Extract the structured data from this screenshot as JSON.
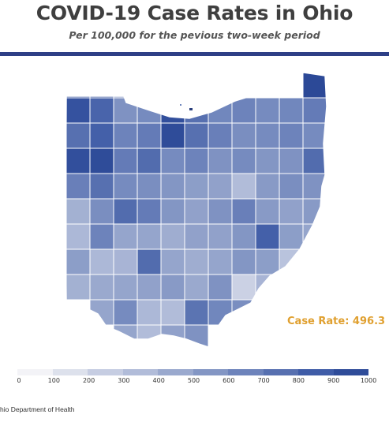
{
  "title": "COVID-19 Case Rates in Ohio",
  "subtitle": "Per 100,000 for the pevious two-week period",
  "highlight": {
    "text": "Case Rate: 496.3",
    "color": "#e0a030"
  },
  "source": "hio Department of Health",
  "legend": {
    "ticks": [
      "0",
      "100",
      "200",
      "300",
      "400",
      "500",
      "600",
      "700",
      "800",
      "900",
      "1000"
    ],
    "colors": [
      "#f3f3f7",
      "#dde1ec",
      "#c6cde2",
      "#b1bcd9",
      "#9aa9ce",
      "#8396c4",
      "#6d83bb",
      "#5770b0",
      "#3f5ca7",
      "#2f4c99",
      "#223f8e"
    ]
  },
  "accent": "#2e3f86",
  "chart_data": {
    "type": "heatmap",
    "title": "COVID-19 Case Rates in Ohio",
    "subtitle": "Per 100,000 for the pevious two-week period",
    "scale_range": [
      0,
      1000
    ],
    "annotation": "Case Rate: 496.3",
    "counties": [
      {
        "row": 0,
        "col": 0,
        "value": 880
      },
      {
        "row": 0,
        "col": 1,
        "value": 900
      },
      {
        "row": 0,
        "col": 2,
        "value": 520
      },
      {
        "row": 0,
        "col": 3,
        "value": 460
      },
      {
        "row": 0,
        "col": 4,
        "value": 510
      },
      {
        "row": 0,
        "col": 5,
        "value": 520
      },
      {
        "row": 0,
        "col": 10,
        "value": 920
      },
      {
        "row": 1,
        "col": 0,
        "value": 860
      },
      {
        "row": 1,
        "col": 1,
        "value": 760
      },
      {
        "row": 1,
        "col": 2,
        "value": 520
      },
      {
        "row": 1,
        "col": 3,
        "value": 560
      },
      {
        "row": 1,
        "col": 4,
        "value": 880
      },
      {
        "row": 1,
        "col": 5,
        "value": 700
      },
      {
        "row": 1,
        "col": 6,
        "value": 580
      },
      {
        "row": 1,
        "col": 7,
        "value": 600
      },
      {
        "row": 1,
        "col": 8,
        "value": 560
      },
      {
        "row": 1,
        "col": 9,
        "value": 580
      },
      {
        "row": 1,
        "col": 10,
        "value": 640
      },
      {
        "row": 2,
        "col": 0,
        "value": 700
      },
      {
        "row": 2,
        "col": 1,
        "value": 780
      },
      {
        "row": 2,
        "col": 2,
        "value": 600
      },
      {
        "row": 2,
        "col": 3,
        "value": 640
      },
      {
        "row": 2,
        "col": 4,
        "value": 900
      },
      {
        "row": 2,
        "col": 5,
        "value": 700
      },
      {
        "row": 2,
        "col": 6,
        "value": 620
      },
      {
        "row": 2,
        "col": 7,
        "value": 540
      },
      {
        "row": 2,
        "col": 8,
        "value": 560
      },
      {
        "row": 2,
        "col": 9,
        "value": 600
      },
      {
        "row": 2,
        "col": 10,
        "value": 560
      },
      {
        "row": 3,
        "col": 0,
        "value": 880
      },
      {
        "row": 3,
        "col": 1,
        "value": 900
      },
      {
        "row": 3,
        "col": 2,
        "value": 640
      },
      {
        "row": 3,
        "col": 3,
        "value": 720
      },
      {
        "row": 3,
        "col": 4,
        "value": 560
      },
      {
        "row": 3,
        "col": 5,
        "value": 600
      },
      {
        "row": 3,
        "col": 6,
        "value": 520
      },
      {
        "row": 3,
        "col": 7,
        "value": 560
      },
      {
        "row": 3,
        "col": 8,
        "value": 500
      },
      {
        "row": 3,
        "col": 9,
        "value": 520
      },
      {
        "row": 3,
        "col": 10,
        "value": 720
      },
      {
        "row": 4,
        "col": 0,
        "value": 620
      },
      {
        "row": 4,
        "col": 1,
        "value": 700
      },
      {
        "row": 4,
        "col": 2,
        "value": 560
      },
      {
        "row": 4,
        "col": 3,
        "value": 540
      },
      {
        "row": 4,
        "col": 4,
        "value": 500
      },
      {
        "row": 4,
        "col": 5,
        "value": 460
      },
      {
        "row": 4,
        "col": 6,
        "value": 440
      },
      {
        "row": 4,
        "col": 7,
        "value": 300
      },
      {
        "row": 4,
        "col": 8,
        "value": 480
      },
      {
        "row": 4,
        "col": 9,
        "value": 540
      },
      {
        "row": 4,
        "col": 10,
        "value": 520
      },
      {
        "row": 5,
        "col": 0,
        "value": 360
      },
      {
        "row": 5,
        "col": 1,
        "value": 540
      },
      {
        "row": 5,
        "col": 2,
        "value": 720
      },
      {
        "row": 5,
        "col": 3,
        "value": 640
      },
      {
        "row": 5,
        "col": 4,
        "value": 500
      },
      {
        "row": 5,
        "col": 5,
        "value": 440
      },
      {
        "row": 5,
        "col": 6,
        "value": 520
      },
      {
        "row": 5,
        "col": 7,
        "value": 620
      },
      {
        "row": 5,
        "col": 8,
        "value": 480
      },
      {
        "row": 5,
        "col": 9,
        "value": 440
      },
      {
        "row": 5,
        "col": 10,
        "value": 480
      },
      {
        "row": 6,
        "col": 0,
        "value": 320
      },
      {
        "row": 6,
        "col": 1,
        "value": 600
      },
      {
        "row": 6,
        "col": 2,
        "value": 420
      },
      {
        "row": 6,
        "col": 3,
        "value": 420
      },
      {
        "row": 6,
        "col": 4,
        "value": 380
      },
      {
        "row": 6,
        "col": 5,
        "value": 440
      },
      {
        "row": 6,
        "col": 6,
        "value": 440
      },
      {
        "row": 6,
        "col": 7,
        "value": 500
      },
      {
        "row": 6,
        "col": 8,
        "value": 780
      },
      {
        "row": 6,
        "col": 9,
        "value": 460
      },
      {
        "row": 6,
        "col": 10,
        "value": 420
      },
      {
        "row": 7,
        "col": 0,
        "value": 460
      },
      {
        "row": 7,
        "col": 1,
        "value": 320
      },
      {
        "row": 7,
        "col": 2,
        "value": 340
      },
      {
        "row": 7,
        "col": 3,
        "value": 720
      },
      {
        "row": 7,
        "col": 4,
        "value": 420
      },
      {
        "row": 7,
        "col": 5,
        "value": 380
      },
      {
        "row": 7,
        "col": 6,
        "value": 420
      },
      {
        "row": 7,
        "col": 7,
        "value": 500
      },
      {
        "row": 7,
        "col": 8,
        "value": 460
      },
      {
        "row": 7,
        "col": 9,
        "value": 260
      },
      {
        "row": 7,
        "col": 10,
        "value": 380
      },
      {
        "row": 8,
        "col": 0,
        "value": 360
      },
      {
        "row": 8,
        "col": 1,
        "value": 400
      },
      {
        "row": 8,
        "col": 2,
        "value": 420
      },
      {
        "row": 8,
        "col": 3,
        "value": 440
      },
      {
        "row": 8,
        "col": 4,
        "value": 480
      },
      {
        "row": 8,
        "col": 5,
        "value": 400
      },
      {
        "row": 8,
        "col": 6,
        "value": 520
      },
      {
        "row": 8,
        "col": 7,
        "value": 180
      },
      {
        "row": 8,
        "col": 8,
        "value": 340
      },
      {
        "row": 8,
        "col": 9,
        "value": 320
      },
      {
        "row": 9,
        "col": 1,
        "value": 420
      },
      {
        "row": 9,
        "col": 2,
        "value": 560
      },
      {
        "row": 9,
        "col": 3,
        "value": 320
      },
      {
        "row": 9,
        "col": 4,
        "value": 300
      },
      {
        "row": 9,
        "col": 5,
        "value": 680
      },
      {
        "row": 9,
        "col": 6,
        "value": 580
      },
      {
        "row": 9,
        "col": 7,
        "value": 540
      },
      {
        "row": 10,
        "col": 2,
        "value": 420
      },
      {
        "row": 10,
        "col": 3,
        "value": 300
      },
      {
        "row": 10,
        "col": 4,
        "value": 440
      },
      {
        "row": 10,
        "col": 5,
        "value": 520
      }
    ]
  }
}
